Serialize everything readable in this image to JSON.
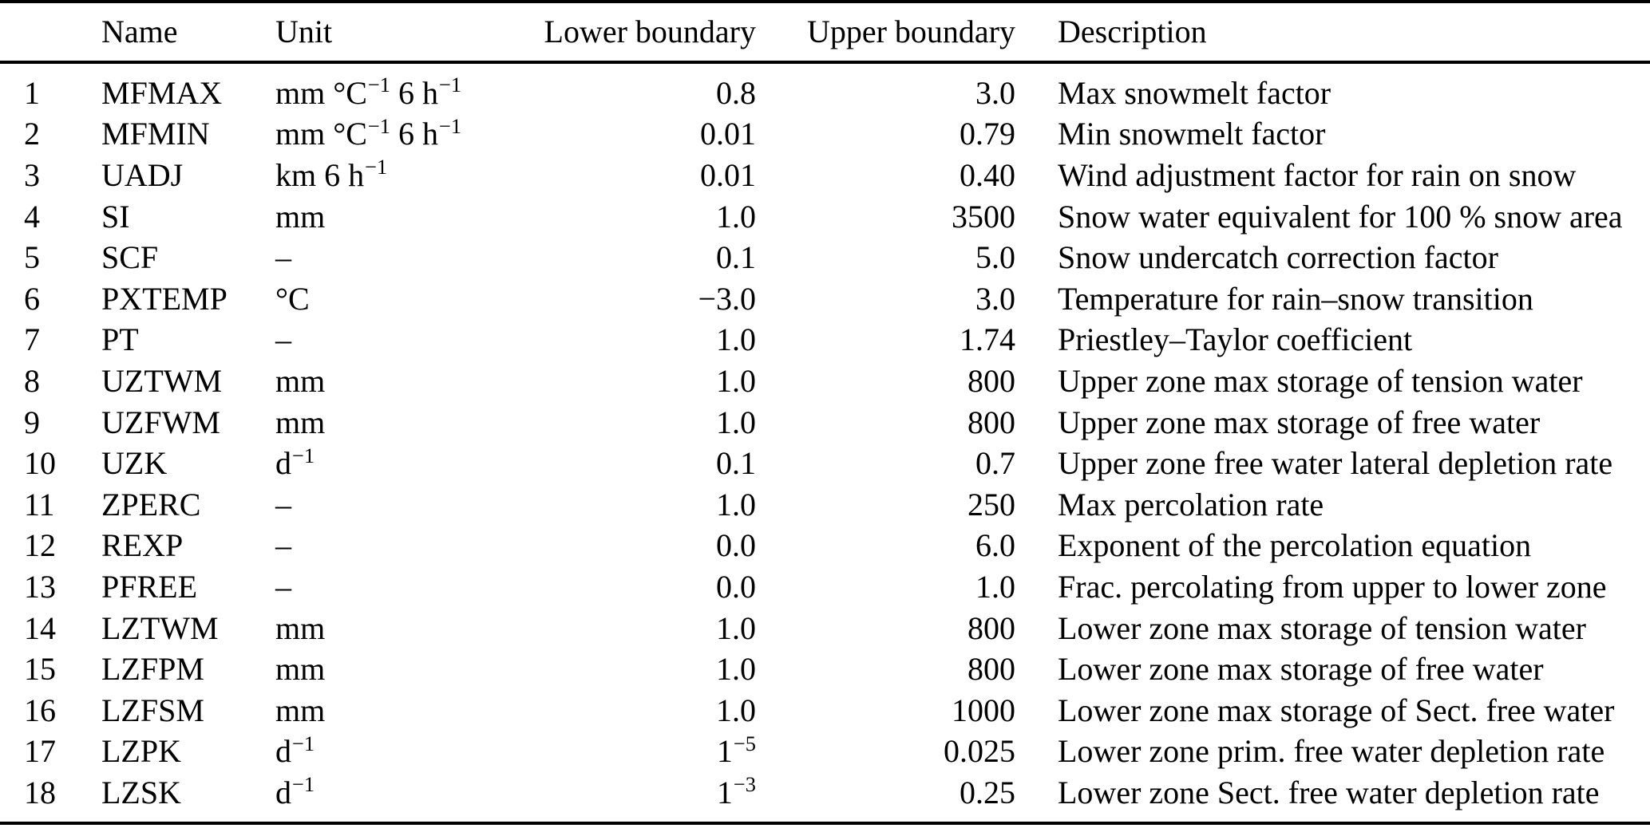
{
  "table": {
    "headers": {
      "num": "",
      "name": "Name",
      "unit": "Unit",
      "lower": "Lower boundary",
      "upper": "Upper boundary",
      "description": "Description"
    },
    "rows": [
      {
        "num": "1",
        "name": "MFMAX",
        "unit": "mm °C^{−1} 6 h^{−1}",
        "lower": "0.8",
        "upper": "3.0",
        "description": "Max snowmelt factor"
      },
      {
        "num": "2",
        "name": "MFMIN",
        "unit": "mm °C^{−1} 6 h^{−1}",
        "lower": "0.01",
        "upper": "0.79",
        "description": "Min snowmelt factor"
      },
      {
        "num": "3",
        "name": "UADJ",
        "unit": "km 6 h^{−1}",
        "lower": "0.01",
        "upper": "0.40",
        "description": "Wind adjustment factor for rain on snow"
      },
      {
        "num": "4",
        "name": "SI",
        "unit": "mm",
        "lower": "1.0",
        "upper": "3500",
        "description": "Snow water equivalent for 100 % snow area"
      },
      {
        "num": "5",
        "name": "SCF",
        "unit": "–",
        "lower": "0.1",
        "upper": "5.0",
        "description": "Snow undercatch correction factor"
      },
      {
        "num": "6",
        "name": "PXTEMP",
        "unit": "°C",
        "lower": "−3.0",
        "upper": "3.0",
        "description": "Temperature for rain–snow transition"
      },
      {
        "num": "7",
        "name": "PT",
        "unit": "–",
        "lower": "1.0",
        "upper": "1.74",
        "description": "Priestley–Taylor coefficient"
      },
      {
        "num": "8",
        "name": "UZTWM",
        "unit": "mm",
        "lower": "1.0",
        "upper": "800",
        "description": "Upper zone max storage of tension water"
      },
      {
        "num": "9",
        "name": "UZFWM",
        "unit": "mm",
        "lower": "1.0",
        "upper": "800",
        "description": "Upper zone max storage of free water"
      },
      {
        "num": "10",
        "name": "UZK",
        "unit": "d^{−1}",
        "lower": "0.1",
        "upper": "0.7",
        "description": "Upper zone free water lateral depletion rate"
      },
      {
        "num": "11",
        "name": "ZPERC",
        "unit": "–",
        "lower": "1.0",
        "upper": "250",
        "description": "Max percolation rate"
      },
      {
        "num": "12",
        "name": "REXP",
        "unit": "–",
        "lower": "0.0",
        "upper": "6.0",
        "description": "Exponent of the percolation equation"
      },
      {
        "num": "13",
        "name": "PFREE",
        "unit": "–",
        "lower": "0.0",
        "upper": "1.0",
        "description": "Frac. percolating from upper to lower zone"
      },
      {
        "num": "14",
        "name": "LZTWM",
        "unit": "mm",
        "lower": "1.0",
        "upper": "800",
        "description": "Lower zone max storage of tension water"
      },
      {
        "num": "15",
        "name": "LZFPM",
        "unit": "mm",
        "lower": "1.0",
        "upper": "800",
        "description": "Lower zone max storage of free water"
      },
      {
        "num": "16",
        "name": "LZFSM",
        "unit": "mm",
        "lower": "1.0",
        "upper": "1000",
        "description": "Lower zone max storage of Sect. free water"
      },
      {
        "num": "17",
        "name": "LZPK",
        "unit": "d^{−1}",
        "lower": "1^{−5}",
        "upper": "0.025",
        "description": "Lower zone prim. free water depletion rate"
      },
      {
        "num": "18",
        "name": "LZSK",
        "unit": "d^{−1}",
        "lower": "1^{−3}",
        "upper": "0.25",
        "description": "Lower zone Sect. free water depletion rate"
      }
    ]
  },
  "colors": {
    "background": "#ffffff",
    "text": "#000000",
    "rule": "#000000"
  }
}
